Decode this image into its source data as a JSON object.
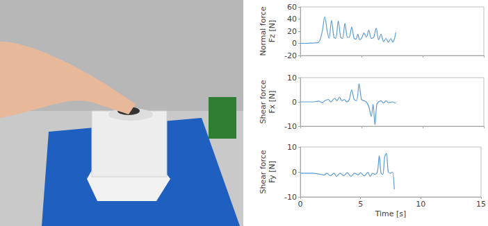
{
  "chart_data": [
    {
      "type": "line",
      "ylabel": "Normal force\nFz [N]",
      "x": [
        0,
        0.5,
        1.0,
        1.4,
        1.6,
        1.8,
        2.0,
        2.2,
        2.35,
        2.55,
        2.75,
        2.9,
        3.1,
        3.3,
        3.45,
        3.65,
        3.85,
        4.0,
        4.2,
        4.4,
        4.55,
        4.7,
        4.85,
        5.0,
        5.2,
        5.4,
        5.6,
        5.8,
        6.0,
        6.2,
        6.4,
        6.6,
        6.8,
        7.0,
        7.2,
        7.4,
        7.55,
        7.7,
        7.8
      ],
      "values": [
        0,
        0,
        0.5,
        1,
        5,
        20,
        44,
        20,
        8,
        38,
        10,
        8,
        37,
        10,
        8,
        33,
        10,
        10,
        27,
        8,
        7,
        15,
        6,
        8,
        17,
        10,
        22,
        8,
        10,
        25,
        6,
        15,
        3,
        8,
        2,
        8,
        2,
        8,
        18
      ],
      "color": "#5b9bd5",
      "marker": "none",
      "line_style": "solid",
      "xlim": [
        0,
        15
      ],
      "xticks": [
        0,
        5,
        10,
        15
      ],
      "ylim": [
        -20,
        60
      ],
      "yticks": [
        -20,
        0,
        20,
        40,
        60
      ],
      "grid": false,
      "tick_labels": "y"
    },
    {
      "type": "line",
      "ylabel": "Shear force\nFx [N]",
      "x": [
        0,
        1.0,
        1.5,
        1.8,
        2.0,
        2.3,
        2.5,
        2.8,
        3.0,
        3.2,
        3.4,
        3.6,
        3.8,
        4.0,
        4.2,
        4.4,
        4.6,
        4.8,
        5.0,
        5.2,
        5.4,
        5.6,
        5.8,
        5.95,
        6.1,
        6.25,
        6.4,
        6.6,
        6.8,
        7.0,
        7.2,
        7.5,
        7.8
      ],
      "values": [
        0,
        0,
        0.3,
        -0.3,
        0.5,
        1,
        0,
        1.5,
        0.5,
        2,
        0.5,
        1,
        0,
        1,
        5,
        1,
        0.5,
        7.5,
        1,
        0.5,
        0,
        -2,
        -6,
        -1,
        -9.5,
        -1,
        0,
        0.5,
        -0.5,
        0.5,
        -0.3,
        0,
        -0.5
      ],
      "color": "#5b9bd5",
      "marker": "none",
      "line_style": "solid",
      "xlim": [
        0,
        15
      ],
      "xticks": [
        0,
        5,
        10,
        15
      ],
      "ylim": [
        -10,
        10
      ],
      "yticks": [
        -10,
        0,
        10
      ],
      "grid": false,
      "tick_labels": "y"
    },
    {
      "type": "line",
      "ylabel": "Shear force\nFy [N]",
      "xlabel": "Time [s]",
      "x": [
        0,
        1.0,
        1.5,
        2.0,
        2.2,
        2.5,
        2.8,
        3.0,
        3.3,
        3.6,
        3.9,
        4.2,
        4.5,
        4.8,
        5.0,
        5.3,
        5.6,
        5.8,
        6.0,
        6.2,
        6.4,
        6.55,
        6.7,
        6.85,
        7.0,
        7.15,
        7.3,
        7.5,
        7.65,
        7.8
      ],
      "values": [
        -0.5,
        -0.5,
        -0.8,
        -1.2,
        -0.5,
        -1.5,
        -0.5,
        -1.8,
        -0.5,
        -1.5,
        -0.3,
        -1.8,
        -0.5,
        -1.2,
        -0.3,
        -1.6,
        -0.2,
        -1.8,
        -0.5,
        -1,
        0,
        6.5,
        -0.5,
        -1,
        6,
        7.5,
        0,
        -0.5,
        0,
        -7
      ],
      "color": "#5b9bd5",
      "marker": "none",
      "line_style": "solid",
      "xlim": [
        0,
        15
      ],
      "xticks": [
        0,
        5,
        10,
        15
      ],
      "ylim": [
        -10,
        10
      ],
      "yticks": [
        -10,
        0,
        10
      ],
      "grid": false,
      "tick_labels": true
    }
  ]
}
